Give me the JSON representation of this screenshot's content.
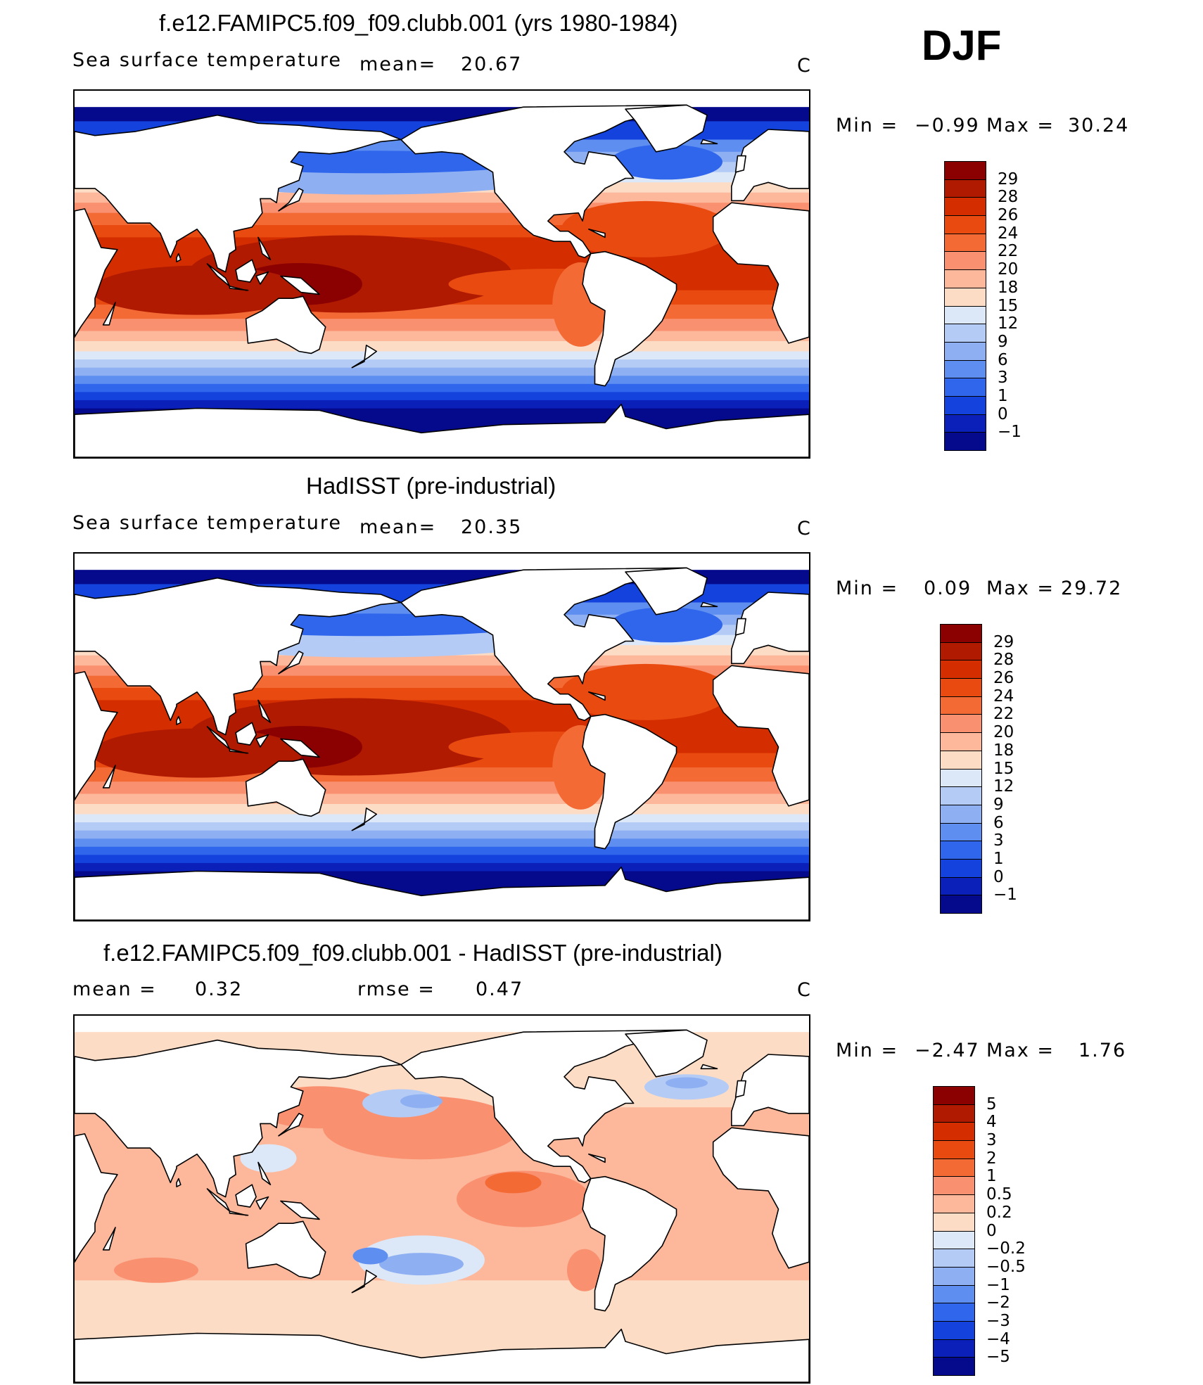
{
  "season": "DJF",
  "panels": [
    {
      "title": "f.e12.FAMIPC5.f09_f09.clubb.001 (yrs 1980-1984)",
      "var_label": "Sea surface temperature",
      "stat1_label": "mean=",
      "stat1_value": "20.67",
      "stat2_label": "",
      "stat2_value": "",
      "units": "C",
      "min_max_label": "Min =",
      "min": "−0.99",
      "max_label": "Max =",
      "max": "30.24",
      "map_kind": "model"
    },
    {
      "title": "HadISST (pre-industrial)",
      "var_label": "Sea surface temperature",
      "stat1_label": "mean=",
      "stat1_value": "20.35",
      "stat2_label": "",
      "stat2_value": "",
      "units": "C",
      "min_max_label": "Min =",
      "min": "0.09",
      "max_label": "Max =",
      "max": "29.72",
      "map_kind": "obs"
    },
    {
      "title": "f.e12.FAMIPC5.f09_f09.clubb.001 - HadISST (pre-industrial)",
      "var_label": "",
      "stat1_label": "mean =",
      "stat1_value": "0.32",
      "stat2_label": "rmse =",
      "stat2_value": "0.47",
      "units": "C",
      "min_max_label": "Min =",
      "min": "−2.47",
      "max_label": "Max =",
      "max": "1.76",
      "map_kind": "diff"
    }
  ],
  "colorbars": {
    "sst": {
      "labels": [
        "29",
        "28",
        "26",
        "24",
        "22",
        "20",
        "18",
        "15",
        "12",
        "9",
        "6",
        "3",
        "1",
        "0",
        "−1"
      ],
      "colors": [
        "#8b0000",
        "#b01a00",
        "#d42e00",
        "#e84a10",
        "#f46a35",
        "#f99070",
        "#fdb79a",
        "#fddcc6",
        "#dce8f8",
        "#b4ccf5",
        "#8eb0f2",
        "#5e8ff0",
        "#2f66ec",
        "#1442dc",
        "#0a20b8",
        "#050a8c"
      ]
    },
    "diff": {
      "labels": [
        "5",
        "4",
        "3",
        "2",
        "1",
        "0.5",
        "0.2",
        "0",
        "−0.2",
        "−0.5",
        "−1",
        "−2",
        "−3",
        "−4",
        "−5"
      ],
      "colors": [
        "#8b0000",
        "#b01a00",
        "#d42e00",
        "#e84a10",
        "#f46a35",
        "#f99070",
        "#fdb79a",
        "#fddcc6",
        "#dce8f8",
        "#b4ccf5",
        "#8eb0f2",
        "#5e8ff0",
        "#2f66ec",
        "#1442dc",
        "#0a20b8",
        "#050a8c"
      ]
    }
  }
}
